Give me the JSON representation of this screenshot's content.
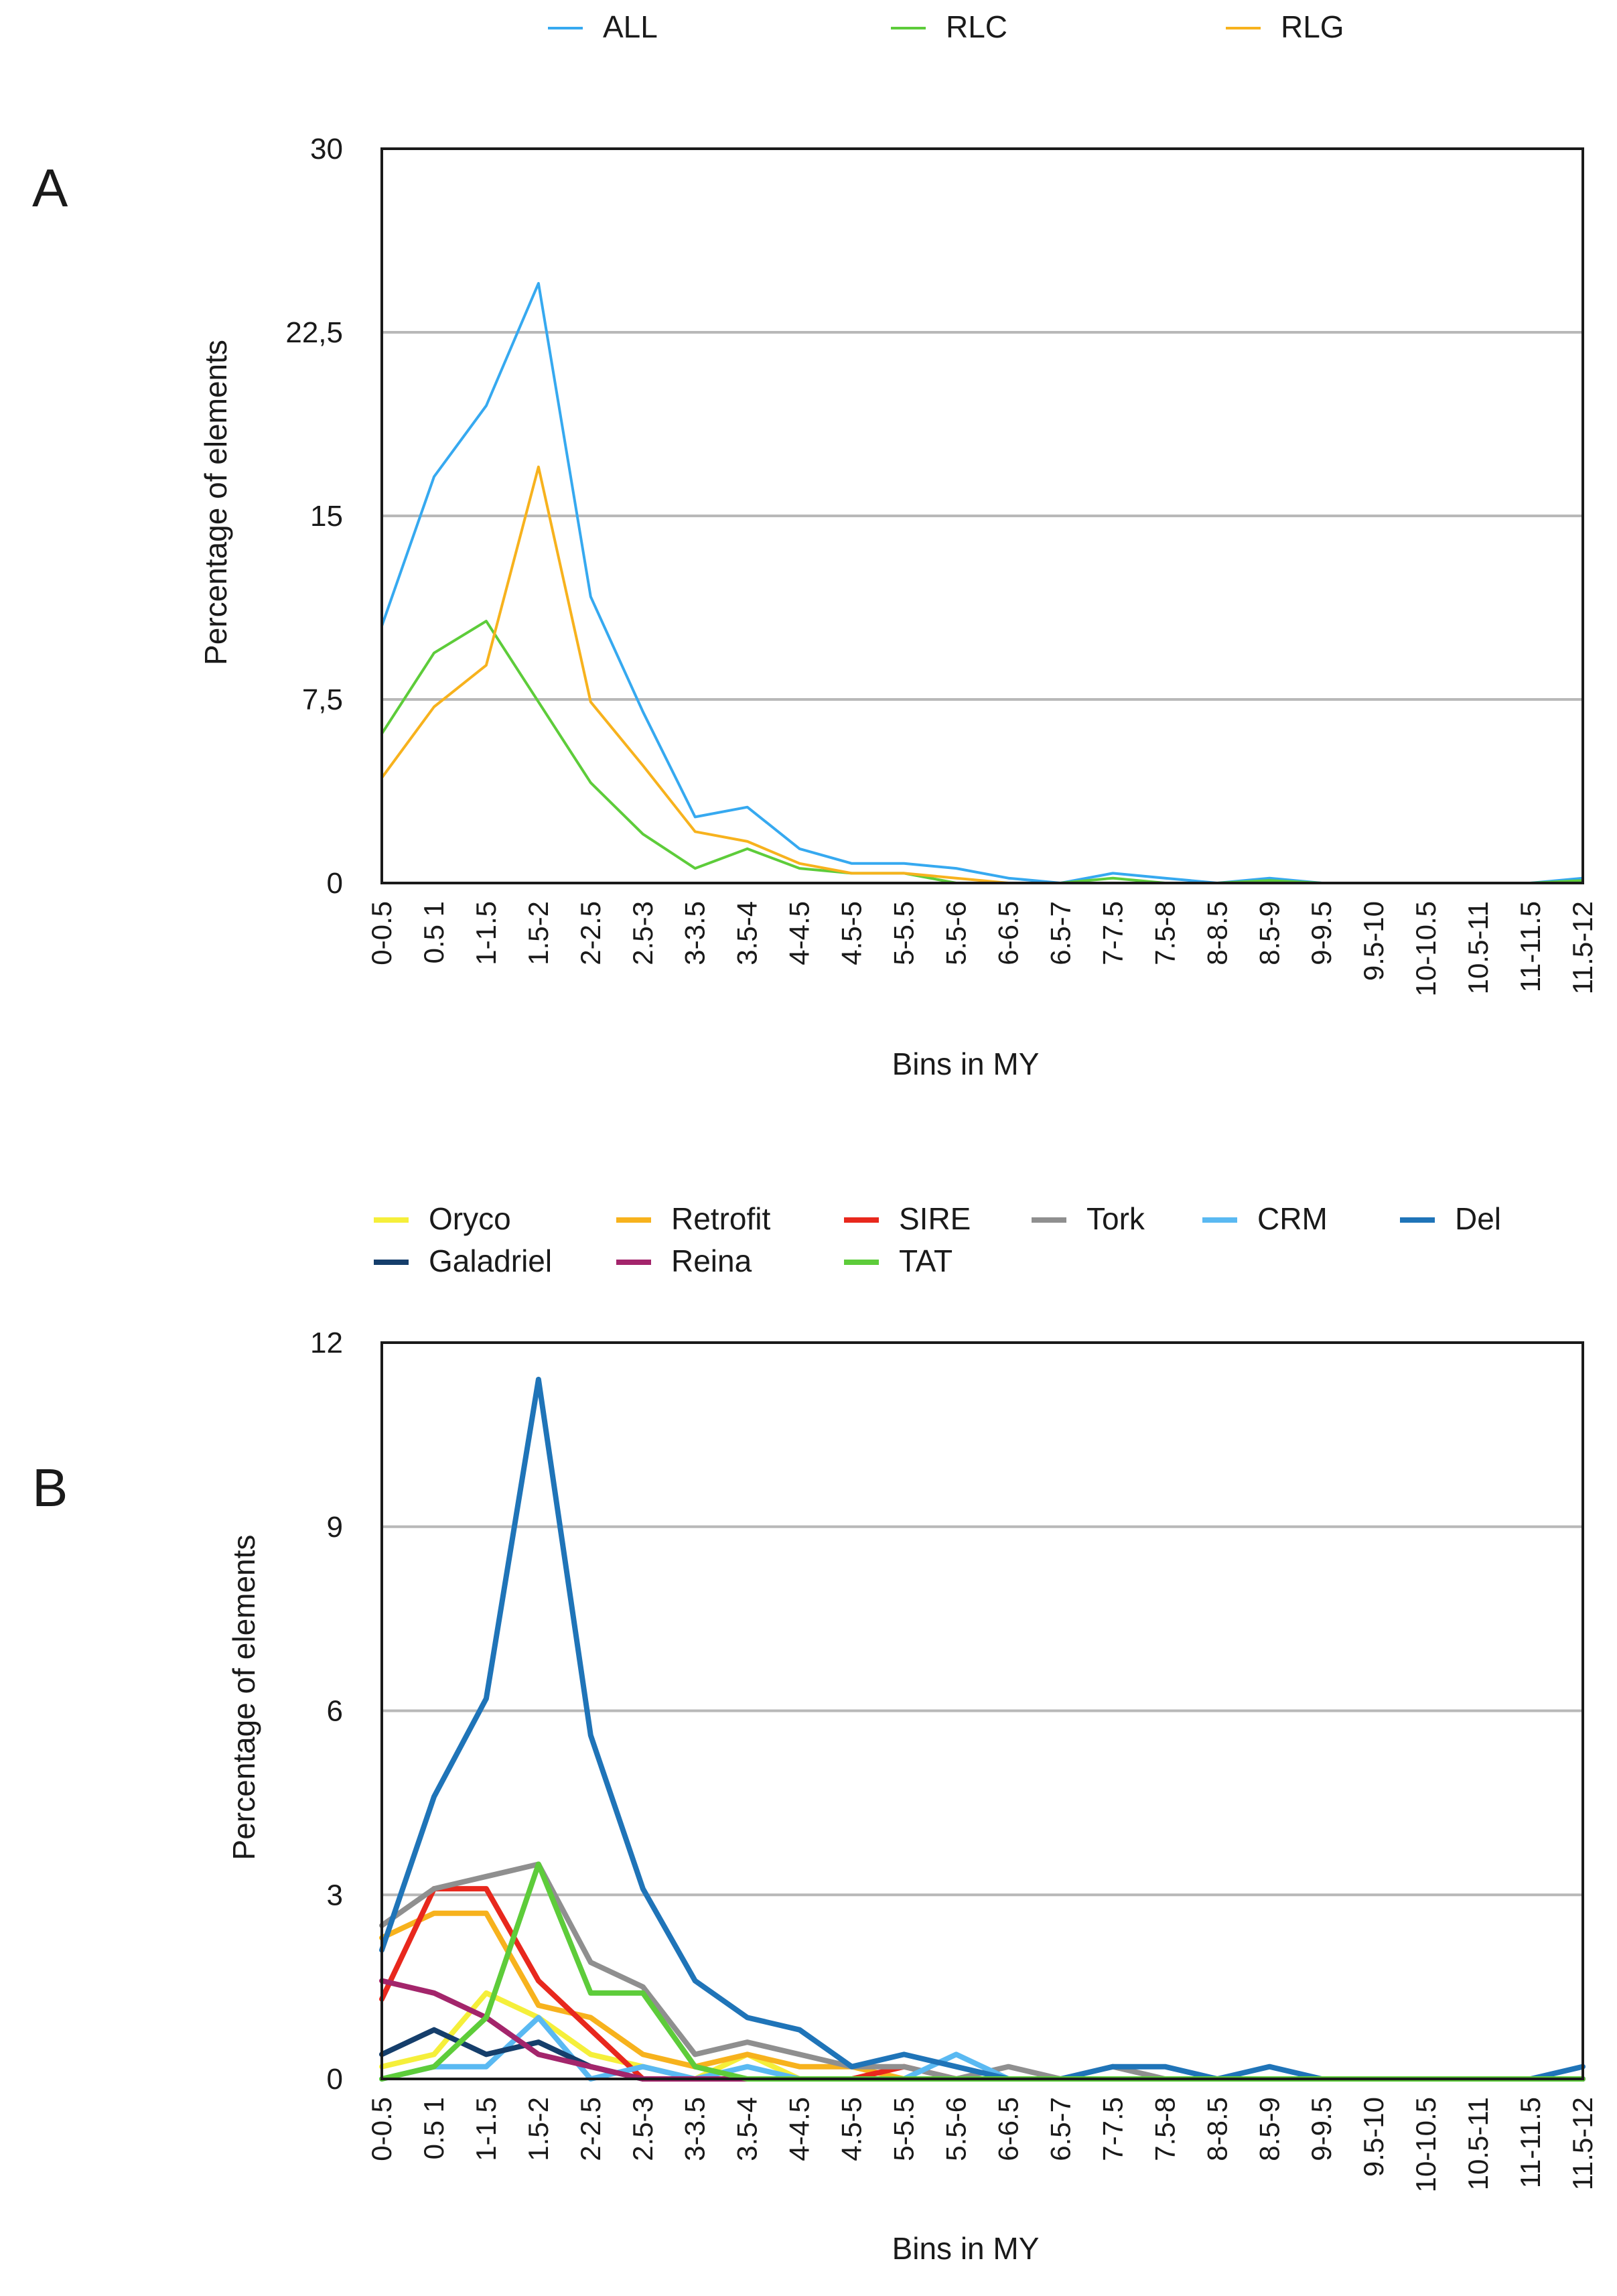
{
  "figure": {
    "panels": [
      {
        "letter": "A",
        "legend": [
          {
            "label": "ALL",
            "color": "#36a9f0"
          },
          {
            "label": "RLC",
            "color": "#5dcc3a"
          },
          {
            "label": "RLG",
            "color": "#f7b21d"
          }
        ]
      },
      {
        "letter": "B",
        "legend": [
          {
            "label": "Oryco",
            "color": "#f5ef3a"
          },
          {
            "label": "Retrofit",
            "color": "#f7b21d"
          },
          {
            "label": "SIRE",
            "color": "#e8281d"
          },
          {
            "label": "Tork",
            "color": "#8f8f8f"
          },
          {
            "label": "CRM",
            "color": "#5ab9f2"
          },
          {
            "label": "Del",
            "color": "#1f74b8"
          },
          {
            "label": "Galadriel",
            "color": "#153e6b"
          },
          {
            "label": "Reina",
            "color": "#a3256b"
          },
          {
            "label": "TAT",
            "color": "#5dcc3a"
          }
        ]
      }
    ]
  },
  "chart_data": [
    {
      "type": "line",
      "title": "",
      "xlabel": "Bins in MY",
      "ylabel": "Percentage of elements",
      "ylim": [
        0,
        30
      ],
      "yticks": [
        0,
        7.5,
        15,
        22.5,
        30
      ],
      "ytick_labels": [
        "0",
        "7,5",
        "15",
        "22,5",
        "30"
      ],
      "grid": "horizontal",
      "legend_position": "top",
      "categories": [
        "0-0.5",
        "0.5 1",
        "1-1.5",
        "1.5-2",
        "2-2.5",
        "2.5-3",
        "3-3.5",
        "3.5-4",
        "4-4.5",
        "4.5-5",
        "5-5.5",
        "5.5-6",
        "6-6.5",
        "6.5-7",
        "7-7.5",
        "7.5-8",
        "8-8.5",
        "8.5-9",
        "9-9.5",
        "9.5-10",
        "10-10.5",
        "10.5-11",
        "11-11.5",
        "11.5-12"
      ],
      "series": [
        {
          "name": "ALL",
          "color": "#36a9f0",
          "values": [
            10.5,
            16.6,
            19.5,
            24.5,
            11.7,
            7.0,
            2.7,
            3.1,
            1.4,
            0.8,
            0.8,
            0.6,
            0.2,
            0.0,
            0.4,
            0.2,
            0.0,
            0.2,
            0.0,
            0.0,
            0.0,
            0.0,
            0.0,
            0.2
          ]
        },
        {
          "name": "RLC",
          "color": "#5dcc3a",
          "values": [
            6.1,
            9.4,
            10.7,
            7.4,
            4.1,
            2.0,
            0.6,
            1.4,
            0.6,
            0.4,
            0.4,
            0.0,
            0.0,
            0.0,
            0.2,
            0.0,
            0.0,
            0.1,
            0.0,
            0.0,
            0.0,
            0.0,
            0.0,
            0.1
          ]
        },
        {
          "name": "RLG",
          "color": "#f7b21d",
          "values": [
            4.3,
            7.2,
            8.9,
            17.0,
            7.4,
            4.8,
            2.1,
            1.7,
            0.8,
            0.4,
            0.4,
            0.2,
            0.0,
            0.0,
            0.0,
            0.0,
            0.0,
            0.0,
            0.0,
            0.0,
            0.0,
            0.0,
            0.0,
            0.0
          ]
        }
      ]
    },
    {
      "type": "line",
      "title": "",
      "xlabel": "Bins in MY",
      "ylabel": "Percentage of elements",
      "ylim": [
        0,
        12
      ],
      "yticks": [
        0,
        3,
        6,
        9,
        12
      ],
      "ytick_labels": [
        "0",
        "3",
        "6",
        "9",
        "12"
      ],
      "grid": "horizontal",
      "legend_position": "top",
      "categories": [
        "0-0.5",
        "0.5 1",
        "1-1.5",
        "1.5-2",
        "2-2.5",
        "2.5-3",
        "3-3.5",
        "3.5-4",
        "4-4.5",
        "4.5-5",
        "5-5.5",
        "5.5-6",
        "6-6.5",
        "6.5-7",
        "7-7.5",
        "7.5-8",
        "8-8.5",
        "8.5-9",
        "9-9.5",
        "9.5-10",
        "10-10.5",
        "10.5-11",
        "11-11.5",
        "11.5-12"
      ],
      "series": [
        {
          "name": "Oryco",
          "color": "#f5ef3a",
          "values": [
            0.2,
            0.4,
            1.4,
            1.0,
            0.4,
            0.2,
            0.0,
            0.4,
            0.0,
            0.0,
            0.0,
            0.0,
            0.0,
            0.0,
            0.0,
            0.0,
            0.0,
            0.0,
            0.0,
            0.0,
            0.0,
            0.0,
            0.0,
            0.0
          ]
        },
        {
          "name": "Retrofit",
          "color": "#f7b21d",
          "values": [
            2.3,
            2.7,
            2.7,
            1.2,
            1.0,
            0.4,
            0.2,
            0.4,
            0.2,
            0.2,
            0.0,
            0.0,
            0.0,
            0.0,
            0.0,
            0.0,
            0.0,
            0.0,
            0.0,
            0.0,
            0.0,
            0.0,
            0.0,
            0.0
          ]
        },
        {
          "name": "SIRE",
          "color": "#e8281d",
          "values": [
            1.3,
            3.1,
            3.1,
            1.6,
            0.8,
            0.0,
            0.0,
            0.0,
            0.0,
            0.0,
            0.2,
            0.0,
            0.0,
            0.0,
            0.0,
            0.0,
            0.0,
            0.0,
            0.0,
            0.0,
            0.0,
            0.0,
            0.0,
            0.0
          ]
        },
        {
          "name": "Tork",
          "color": "#8f8f8f",
          "values": [
            2.5,
            3.1,
            3.3,
            3.5,
            1.9,
            1.5,
            0.4,
            0.6,
            0.4,
            0.2,
            0.2,
            0.0,
            0.2,
            0.0,
            0.2,
            0.0,
            0.0,
            0.0,
            0.0,
            0.0,
            0.0,
            0.0,
            0.0,
            0.0
          ]
        },
        {
          "name": "CRM",
          "color": "#5ab9f2",
          "values": [
            0.0,
            0.2,
            0.2,
            1.0,
            0.0,
            0.2,
            0.0,
            0.2,
            0.0,
            0.0,
            0.0,
            0.4,
            0.0,
            0.0,
            0.0,
            0.0,
            0.0,
            0.0,
            0.0,
            0.0,
            0.0,
            0.0,
            0.0,
            0.0
          ]
        },
        {
          "name": "Del",
          "color": "#1f74b8",
          "values": [
            2.1,
            4.6,
            6.2,
            11.4,
            5.6,
            3.1,
            1.6,
            1.0,
            0.8,
            0.2,
            0.4,
            0.2,
            0.0,
            0.0,
            0.2,
            0.2,
            0.0,
            0.2,
            0.0,
            0.0,
            0.0,
            0.0,
            0.0,
            0.2
          ]
        },
        {
          "name": "Galadriel",
          "color": "#153e6b",
          "values": [
            0.4,
            0.8,
            0.4,
            0.6,
            0.2,
            0.0,
            0.0,
            0.0,
            0.0,
            0.0,
            0.0,
            0.0,
            0.0,
            0.0,
            0.0,
            0.0,
            0.0,
            0.0,
            0.0,
            0.0,
            0.0,
            0.0,
            0.0,
            0.0
          ]
        },
        {
          "name": "Reina",
          "color": "#a3256b",
          "values": [
            1.6,
            1.4,
            1.0,
            0.4,
            0.2,
            0.0,
            0.0,
            0.0,
            0.0,
            0.0,
            0.0,
            0.0,
            0.0,
            0.0,
            0.0,
            0.0,
            0.0,
            0.0,
            0.0,
            0.0,
            0.0,
            0.0,
            0.0,
            0.0
          ]
        },
        {
          "name": "TAT",
          "color": "#5dcc3a",
          "values": [
            0.0,
            0.2,
            1.0,
            3.5,
            1.4,
            1.4,
            0.2,
            0.0,
            0.0,
            0.0,
            0.0,
            0.0,
            0.0,
            0.0,
            0.0,
            0.0,
            0.0,
            0.0,
            0.0,
            0.0,
            0.0,
            0.0,
            0.0,
            0.0
          ]
        }
      ]
    }
  ]
}
